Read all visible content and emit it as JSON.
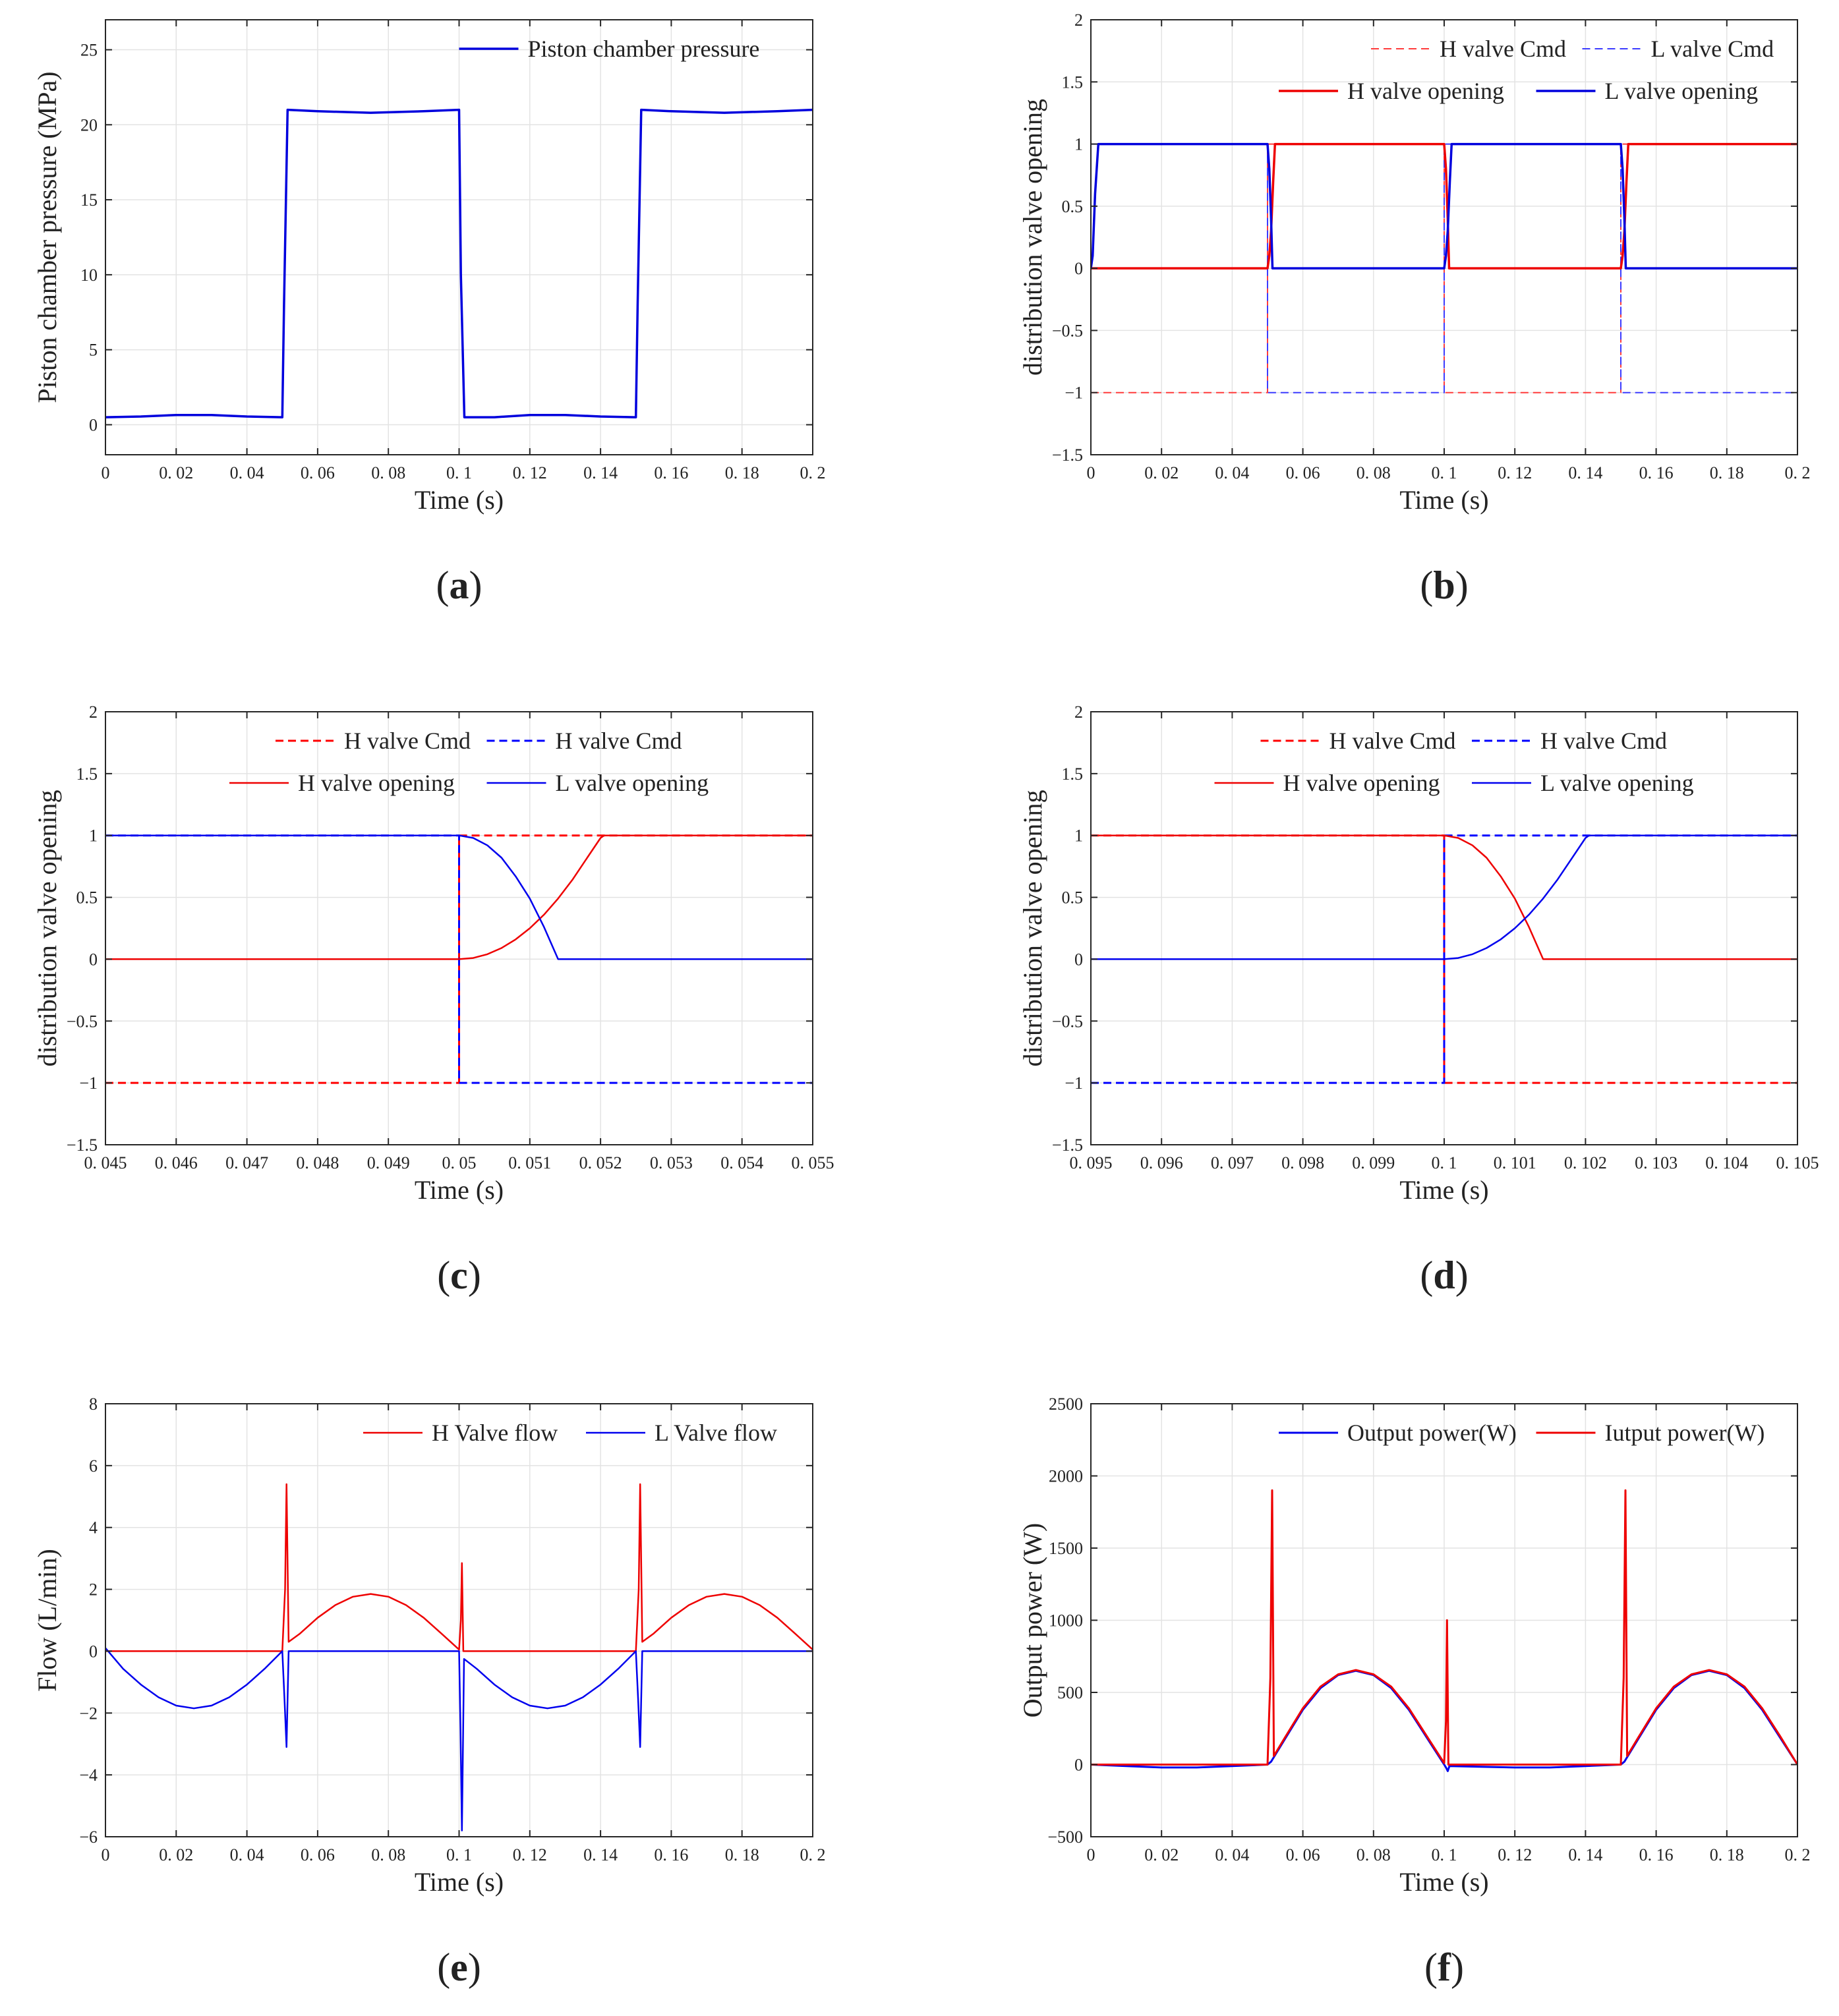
{
  "chart_data": [
    {
      "id": "a",
      "type": "line",
      "panel_label": "a",
      "xlabel": "Time (s)",
      "ylabel": "Piston chamber pressure (MPa)",
      "xlim": [
        0,
        0.2
      ],
      "ylim": [
        -2,
        27
      ],
      "xticks": [
        0,
        0.02,
        0.04,
        0.06,
        0.08,
        0.1,
        0.12,
        0.14,
        0.16,
        0.18,
        0.2
      ],
      "xtick_labels": [
        "0",
        "0. 02",
        "0. 04",
        "0. 06",
        "0. 08",
        "0. 1",
        "0. 12",
        "0. 14",
        "0. 16",
        "0. 18",
        "0. 2"
      ],
      "yticks": [
        0,
        5,
        10,
        15,
        20,
        25
      ],
      "ytick_labels": [
        "0",
        "5",
        "10",
        "15",
        "20",
        "25"
      ],
      "legend_position": "top-right",
      "legend_rows": [
        [
          0
        ]
      ],
      "series": [
        {
          "name": "Piston chamber pressure",
          "color": "#0000dd",
          "dash": "solid",
          "width": 3.5,
          "x": [
            0,
            0.01,
            0.02,
            0.03,
            0.04,
            0.05,
            0.0505,
            0.0515,
            0.06,
            0.075,
            0.09,
            0.1,
            0.1005,
            0.1015,
            0.11,
            0.12,
            0.13,
            0.14,
            0.15,
            0.1505,
            0.1515,
            0.16,
            0.175,
            0.19,
            0.2
          ],
          "y": [
            0.5,
            0.55,
            0.65,
            0.65,
            0.55,
            0.5,
            8,
            21,
            20.9,
            20.8,
            20.9,
            21,
            10,
            0.5,
            0.5,
            0.65,
            0.65,
            0.55,
            0.5,
            8,
            21,
            20.9,
            20.8,
            20.9,
            21
          ]
        }
      ]
    },
    {
      "id": "b",
      "type": "line",
      "panel_label": "b",
      "xlabel": "Time (s)",
      "ylabel": "distribution valve opening",
      "xlim": [
        0,
        0.2
      ],
      "ylim": [
        -1.5,
        2
      ],
      "xticks": [
        0,
        0.02,
        0.04,
        0.06,
        0.08,
        0.1,
        0.12,
        0.14,
        0.16,
        0.18,
        0.2
      ],
      "xtick_labels": [
        "0",
        "0. 02",
        "0. 04",
        "0. 06",
        "0. 08",
        "0. 1",
        "0. 12",
        "0. 14",
        "0. 16",
        "0. 18",
        "0. 2"
      ],
      "yticks": [
        -1.5,
        -1,
        -0.5,
        0,
        0.5,
        1,
        1.5,
        2
      ],
      "ytick_labels": [
        "−1.5",
        "−1",
        "−0.5",
        "0",
        "0.5",
        "1",
        "1.5",
        "2"
      ],
      "legend_position": "top-right",
      "legend_rows": [
        [
          0,
          1
        ],
        [
          2,
          3
        ]
      ],
      "series": [
        {
          "name": "H valve Cmd",
          "color": "#ff3b3b",
          "dash": "dashed",
          "width": 2,
          "x": [
            0,
            0.05,
            0.05,
            0.1,
            0.1,
            0.15,
            0.15,
            0.2
          ],
          "y": [
            -1,
            -1,
            1,
            1,
            -1,
            -1,
            1,
            1
          ]
        },
        {
          "name": "L valve Cmd",
          "color": "#3b3bff",
          "dash": "dashed",
          "width": 2,
          "x": [
            0,
            0.05,
            0.05,
            0.1,
            0.1,
            0.15,
            0.15,
            0.2
          ],
          "y": [
            1,
            1,
            -1,
            -1,
            1,
            1,
            -1,
            -1
          ]
        },
        {
          "name": "H valve opening",
          "color": "#ee0000",
          "dash": "solid",
          "width": 3.5,
          "x": [
            0,
            0.05,
            0.0505,
            0.051,
            0.0516,
            0.0521,
            0.1,
            0.1005,
            0.101,
            0.1014,
            0.15,
            0.1505,
            0.151,
            0.1516,
            0.1521,
            0.2
          ],
          "y": [
            0,
            0,
            0.1,
            0.3,
            0.7,
            1,
            1,
            0.8,
            0.4,
            0,
            0,
            0.1,
            0.3,
            0.7,
            1,
            1
          ]
        },
        {
          "name": "L valve opening",
          "color": "#0000dd",
          "dash": "solid",
          "width": 3.5,
          "x": [
            0,
            0.0005,
            0.0012,
            0.0021,
            0.05,
            0.0505,
            0.051,
            0.0514,
            0.1,
            0.1005,
            0.101,
            0.1016,
            0.1021,
            0.15,
            0.1505,
            0.151,
            0.1514,
            0.2
          ],
          "y": [
            0,
            0.1,
            0.6,
            1,
            1,
            0.8,
            0.4,
            0,
            0,
            0.1,
            0.3,
            0.7,
            1,
            1,
            0.8,
            0.4,
            0,
            0
          ]
        }
      ]
    },
    {
      "id": "c",
      "type": "line",
      "panel_label": "c",
      "xlabel": "Time (s)",
      "ylabel": "distribution valve opening",
      "xlim": [
        0.045,
        0.055
      ],
      "ylim": [
        -1.5,
        2
      ],
      "xticks": [
        0.045,
        0.046,
        0.047,
        0.048,
        0.049,
        0.05,
        0.051,
        0.052,
        0.053,
        0.054,
        0.055
      ],
      "xtick_labels": [
        "0. 045",
        "0. 046",
        "0. 047",
        "0. 048",
        "0. 049",
        "0. 05",
        "0. 051",
        "0. 052",
        "0. 053",
        "0. 054",
        "0. 055"
      ],
      "yticks": [
        -1.5,
        -1,
        -0.5,
        0,
        0.5,
        1,
        1.5,
        2
      ],
      "ytick_labels": [
        "−1.5",
        "−1",
        "−0.5",
        "0",
        "0.5",
        "1",
        "1.5",
        "2"
      ],
      "legend_position": "top-center",
      "legend_rows": [
        [
          0,
          1
        ],
        [
          2,
          3
        ]
      ],
      "series": [
        {
          "name": "H valve Cmd",
          "color": "#ff0000",
          "dash": "dashed",
          "width": 3,
          "x": [
            0.045,
            0.05,
            0.05,
            0.055
          ],
          "y": [
            -1,
            -1,
            1,
            1
          ]
        },
        {
          "name": "H valve Cmd",
          "color": "#0000ff",
          "dash": "dashed",
          "width": 3,
          "x": [
            0.045,
            0.05,
            0.05,
            0.055
          ],
          "y": [
            1,
            1,
            -1,
            -1
          ]
        },
        {
          "name": "H valve opening",
          "color": "#ee0000",
          "dash": "solid",
          "width": 2.5,
          "x": [
            0.045,
            0.05,
            0.0502,
            0.0504,
            0.0506,
            0.0508,
            0.051,
            0.0512,
            0.0514,
            0.0516,
            0.0518,
            0.052,
            0.05205,
            0.055
          ],
          "y": [
            0,
            0,
            0.01,
            0.04,
            0.09,
            0.16,
            0.25,
            0.36,
            0.49,
            0.64,
            0.81,
            0.98,
            1,
            1
          ]
        },
        {
          "name": "L valve opening",
          "color": "#0000ee",
          "dash": "solid",
          "width": 2.5,
          "x": [
            0.045,
            0.05,
            0.0502,
            0.0504,
            0.0506,
            0.0508,
            0.051,
            0.0512,
            0.0514,
            0.055
          ],
          "y": [
            1,
            1,
            0.98,
            0.92,
            0.82,
            0.67,
            0.49,
            0.26,
            0,
            0
          ]
        }
      ]
    },
    {
      "id": "d",
      "type": "line",
      "panel_label": "d",
      "xlabel": "Time (s)",
      "ylabel": "distribution valve opening",
      "xlim": [
        0.095,
        0.105
      ],
      "ylim": [
        -1.5,
        2
      ],
      "xticks": [
        0.095,
        0.096,
        0.097,
        0.098,
        0.099,
        0.1,
        0.101,
        0.102,
        0.103,
        0.104,
        0.105
      ],
      "xtick_labels": [
        "0. 095",
        "0. 096",
        "0. 097",
        "0. 098",
        "0. 099",
        "0. 1",
        "0. 101",
        "0. 102",
        "0. 103",
        "0. 104",
        "0. 105"
      ],
      "yticks": [
        -1.5,
        -1,
        -0.5,
        0,
        0.5,
        1,
        1.5,
        2
      ],
      "ytick_labels": [
        "−1.5",
        "−1",
        "−0.5",
        "0",
        "0.5",
        "1",
        "1.5",
        "2"
      ],
      "legend_position": "top-center",
      "legend_rows": [
        [
          0,
          1
        ],
        [
          2,
          3
        ]
      ],
      "series": [
        {
          "name": "H valve Cmd",
          "color": "#ff0000",
          "dash": "dashed",
          "width": 3,
          "x": [
            0.095,
            0.1,
            0.1,
            0.105
          ],
          "y": [
            1,
            1,
            -1,
            -1
          ]
        },
        {
          "name": "H valve Cmd",
          "color": "#0000ff",
          "dash": "dashed",
          "width": 3,
          "x": [
            0.095,
            0.1,
            0.1,
            0.105
          ],
          "y": [
            -1,
            -1,
            1,
            1
          ]
        },
        {
          "name": "H valve opening",
          "color": "#ee0000",
          "dash": "solid",
          "width": 2.5,
          "x": [
            0.095,
            0.1,
            0.1002,
            0.1004,
            0.1006,
            0.1008,
            0.101,
            0.1012,
            0.1014,
            0.105
          ],
          "y": [
            1,
            1,
            0.98,
            0.92,
            0.82,
            0.67,
            0.49,
            0.26,
            0,
            0
          ]
        },
        {
          "name": "L valve opening",
          "color": "#0000ee",
          "dash": "solid",
          "width": 2.5,
          "x": [
            0.095,
            0.1,
            0.1002,
            0.1004,
            0.1006,
            0.1008,
            0.101,
            0.1012,
            0.1014,
            0.1016,
            0.1018,
            0.102,
            0.10205,
            0.105
          ],
          "y": [
            0,
            0,
            0.01,
            0.04,
            0.09,
            0.16,
            0.25,
            0.36,
            0.49,
            0.64,
            0.81,
            0.98,
            1,
            1
          ]
        }
      ]
    },
    {
      "id": "e",
      "type": "line",
      "panel_label": "e",
      "xlabel": "Time (s)",
      "ylabel": "Flow (L/min)",
      "xlim": [
        0,
        0.2
      ],
      "ylim": [
        -6,
        8
      ],
      "xticks": [
        0,
        0.02,
        0.04,
        0.06,
        0.08,
        0.1,
        0.12,
        0.14,
        0.16,
        0.18,
        0.2
      ],
      "xtick_labels": [
        "0",
        "0. 02",
        "0. 04",
        "0. 06",
        "0. 08",
        "0. 1",
        "0. 12",
        "0. 14",
        "0. 16",
        "0. 18",
        "0. 2"
      ],
      "yticks": [
        -6,
        -4,
        -2,
        0,
        2,
        4,
        6,
        8
      ],
      "ytick_labels": [
        "−6",
        "−4",
        "−2",
        "0",
        "2",
        "4",
        "6",
        "8"
      ],
      "legend_position": "top-right",
      "legend_rows": [
        [
          0,
          1
        ]
      ],
      "series": [
        {
          "name": "H Valve flow",
          "color": "#ee0000",
          "dash": "solid",
          "width": 2.5,
          "x": [
            0,
            0.05,
            0.0508,
            0.0512,
            0.0518,
            0.055,
            0.06,
            0.065,
            0.07,
            0.075,
            0.08,
            0.085,
            0.09,
            0.095,
            0.1,
            0.1005,
            0.1008,
            0.1012,
            0.15,
            0.1508,
            0.1512,
            0.1518,
            0.155,
            0.16,
            0.165,
            0.17,
            0.175,
            0.18,
            0.185,
            0.19,
            0.195,
            0.2
          ],
          "y": [
            0,
            0,
            2,
            5.4,
            0.3,
            0.57,
            1.08,
            1.49,
            1.76,
            1.85,
            1.76,
            1.49,
            1.08,
            0.57,
            0.05,
            1,
            2.85,
            0,
            0,
            2,
            5.4,
            0.3,
            0.57,
            1.08,
            1.49,
            1.76,
            1.85,
            1.76,
            1.49,
            1.08,
            0.57,
            0.05
          ]
        },
        {
          "name": "L Valve flow",
          "color": "#0000ee",
          "dash": "solid",
          "width": 2.5,
          "x": [
            0,
            0.005,
            0.01,
            0.015,
            0.02,
            0.025,
            0.03,
            0.035,
            0.04,
            0.045,
            0.05,
            0.0506,
            0.0512,
            0.0518,
            0.1,
            0.1004,
            0.1008,
            0.1014,
            0.105,
            0.11,
            0.115,
            0.12,
            0.125,
            0.13,
            0.135,
            0.14,
            0.145,
            0.15,
            0.1506,
            0.1512,
            0.1518,
            0.2
          ],
          "y": [
            0.1,
            -0.57,
            -1.08,
            -1.49,
            -1.76,
            -1.85,
            -1.76,
            -1.49,
            -1.08,
            -0.57,
            0,
            -1.5,
            -3.1,
            0,
            0,
            -2.5,
            -5.8,
            -0.25,
            -0.57,
            -1.08,
            -1.49,
            -1.76,
            -1.85,
            -1.76,
            -1.49,
            -1.08,
            -0.57,
            0,
            -1.5,
            -3.1,
            0,
            0
          ]
        }
      ]
    },
    {
      "id": "f",
      "type": "line",
      "panel_label": "f",
      "xlabel": "Time (s)",
      "ylabel": "Output power (W)",
      "xlim": [
        0,
        0.2
      ],
      "ylim": [
        -500,
        2500
      ],
      "xticks": [
        0,
        0.02,
        0.04,
        0.06,
        0.08,
        0.1,
        0.12,
        0.14,
        0.16,
        0.18,
        0.2
      ],
      "xtick_labels": [
        "0",
        "0. 02",
        "0. 04",
        "0. 06",
        "0. 08",
        "0. 1",
        "0. 12",
        "0. 14",
        "0. 16",
        "0. 18",
        "0. 2"
      ],
      "yticks": [
        -500,
        0,
        500,
        1000,
        1500,
        2000,
        2500
      ],
      "ytick_labels": [
        "−500",
        "0",
        "500",
        "1000",
        "1500",
        "2000",
        "2500"
      ],
      "legend_position": "top-right",
      "legend_rows": [
        [
          0,
          1
        ]
      ],
      "series": [
        {
          "name": "Output power(W)",
          "color": "#0000ee",
          "dash": "solid",
          "width": 3,
          "x": [
            0,
            0.01,
            0.02,
            0.03,
            0.04,
            0.05,
            0.051,
            0.055,
            0.06,
            0.065,
            0.07,
            0.075,
            0.08,
            0.085,
            0.09,
            0.095,
            0.1,
            0.1005,
            0.101,
            0.1015,
            0.11,
            0.12,
            0.13,
            0.14,
            0.15,
            0.151,
            0.155,
            0.16,
            0.165,
            0.17,
            0.175,
            0.18,
            0.185,
            0.19,
            0.195,
            0.2
          ],
          "y": [
            0,
            -10,
            -20,
            -20,
            -10,
            0,
            20,
            180,
            380,
            530,
            620,
            650,
            620,
            530,
            380,
            190,
            0,
            -20,
            -45,
            -10,
            -15,
            -20,
            -20,
            -10,
            0,
            20,
            180,
            380,
            530,
            620,
            650,
            620,
            530,
            380,
            190,
            0
          ]
        },
        {
          "name": "Iutput power(W)",
          "color": "#ee0000",
          "dash": "solid",
          "width": 3,
          "x": [
            0,
            0.05,
            0.0508,
            0.0513,
            0.0518,
            0.055,
            0.06,
            0.065,
            0.07,
            0.075,
            0.08,
            0.085,
            0.09,
            0.095,
            0.1,
            0.1005,
            0.1008,
            0.1012,
            0.15,
            0.1508,
            0.1513,
            0.1518,
            0.155,
            0.16,
            0.165,
            0.17,
            0.175,
            0.18,
            0.185,
            0.19,
            0.195,
            0.2
          ],
          "y": [
            0,
            0,
            600,
            1900,
            60,
            190,
            390,
            540,
            625,
            655,
            625,
            540,
            390,
            200,
            10,
            300,
            1000,
            0,
            0,
            600,
            1900,
            60,
            190,
            390,
            540,
            625,
            655,
            625,
            540,
            390,
            200,
            0
          ]
        }
      ]
    }
  ]
}
